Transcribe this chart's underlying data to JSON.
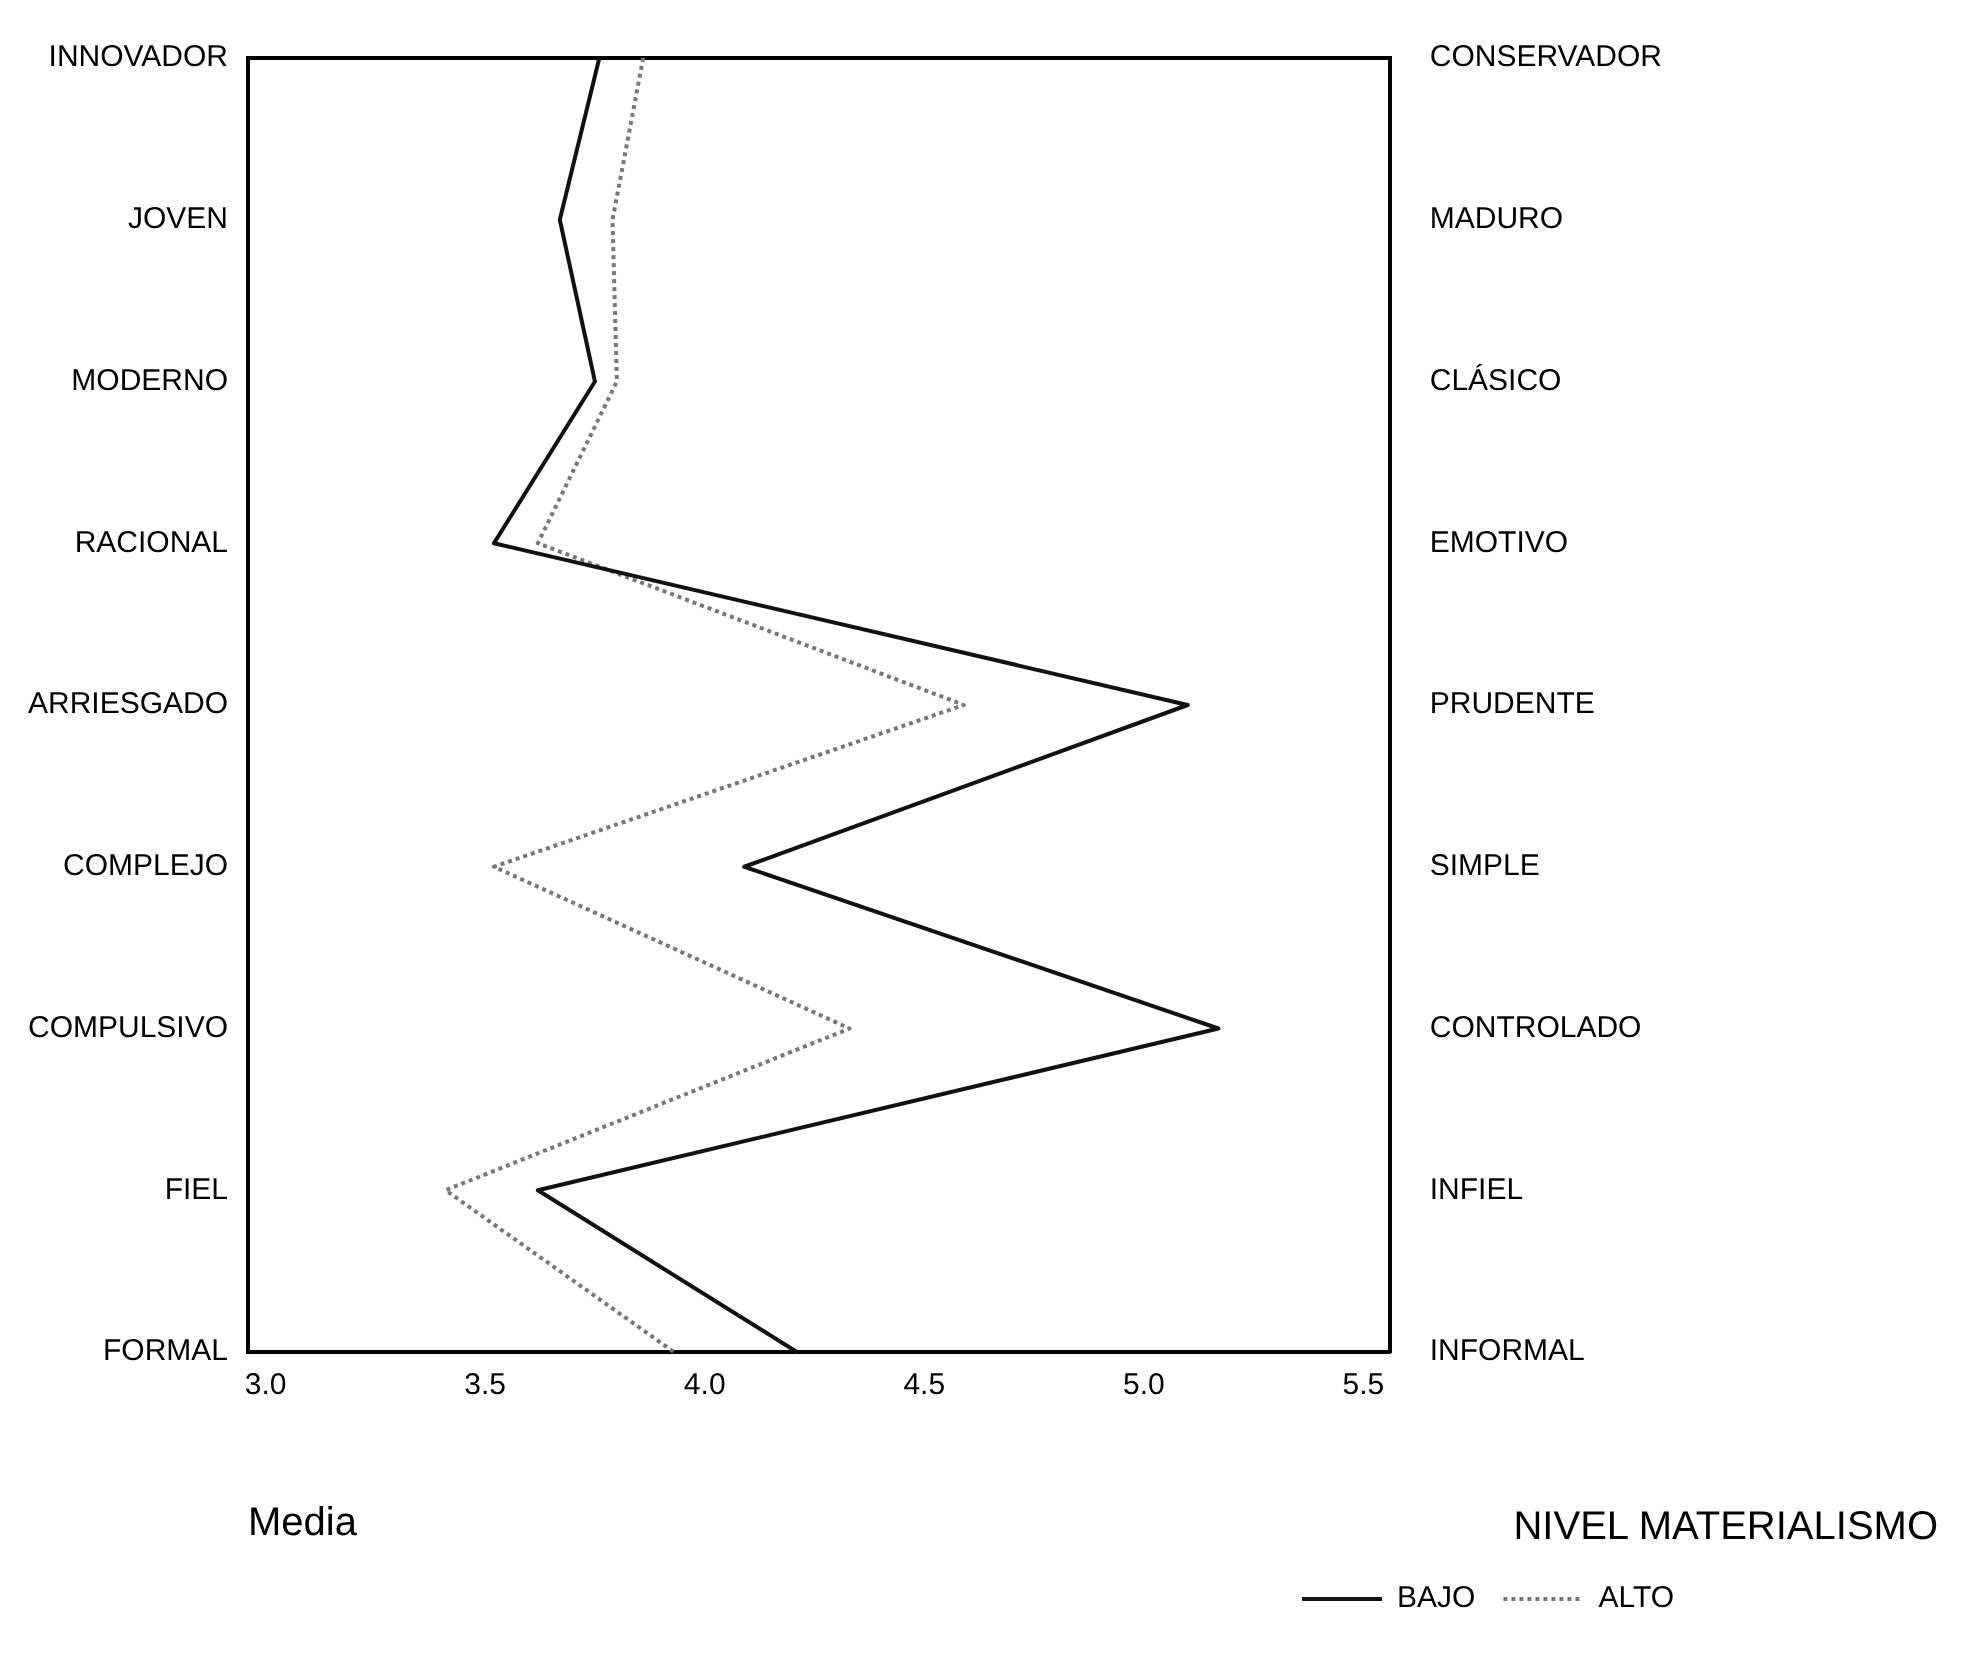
{
  "chart_data": {
    "type": "line",
    "orientation": "horizontal",
    "xlabel": "Media",
    "legend_title": "NIVEL MATERIALISMO",
    "legend": "bottom right",
    "grid": false,
    "marker": "none",
    "categories": [
      "INNOVADOR",
      "JOVEN",
      "MODERNO",
      "RACIONAL",
      "ARRIESGADO",
      "COMPLEJO",
      "COMPULSIVO",
      "FIEL",
      "FORMAL"
    ],
    "y2_categories": [
      "CONSERVADOR",
      "MADURO",
      "CLÁSICO",
      "EMOTIVO",
      "PRUDENTE",
      "SIMPLE",
      "CONTROLADO",
      "INFIEL",
      "INFORMAL"
    ],
    "xlim": [
      2.96,
      5.56
    ],
    "xticks": [
      {
        "value": 3,
        "label": "3.0"
      },
      {
        "value": 3.5,
        "label": "3.5"
      },
      {
        "value": 4,
        "label": "4.0"
      },
      {
        "value": 4.5,
        "label": "4.5"
      },
      {
        "value": 5,
        "label": "5.0"
      },
      {
        "value": 5.5,
        "label": "5.5"
      }
    ],
    "series": [
      {
        "name": "BAJO",
        "color": "#111111",
        "line_style": "solid",
        "values": [
          3.76,
          3.67,
          3.75,
          3.52,
          5.1,
          4.09,
          5.17,
          3.62,
          4.21
        ]
      },
      {
        "name": "ALTO",
        "color": "#777777",
        "line_style": "dotted",
        "values": [
          3.86,
          3.79,
          3.8,
          3.62,
          4.59,
          3.52,
          4.33,
          3.41,
          3.93
        ]
      }
    ]
  }
}
